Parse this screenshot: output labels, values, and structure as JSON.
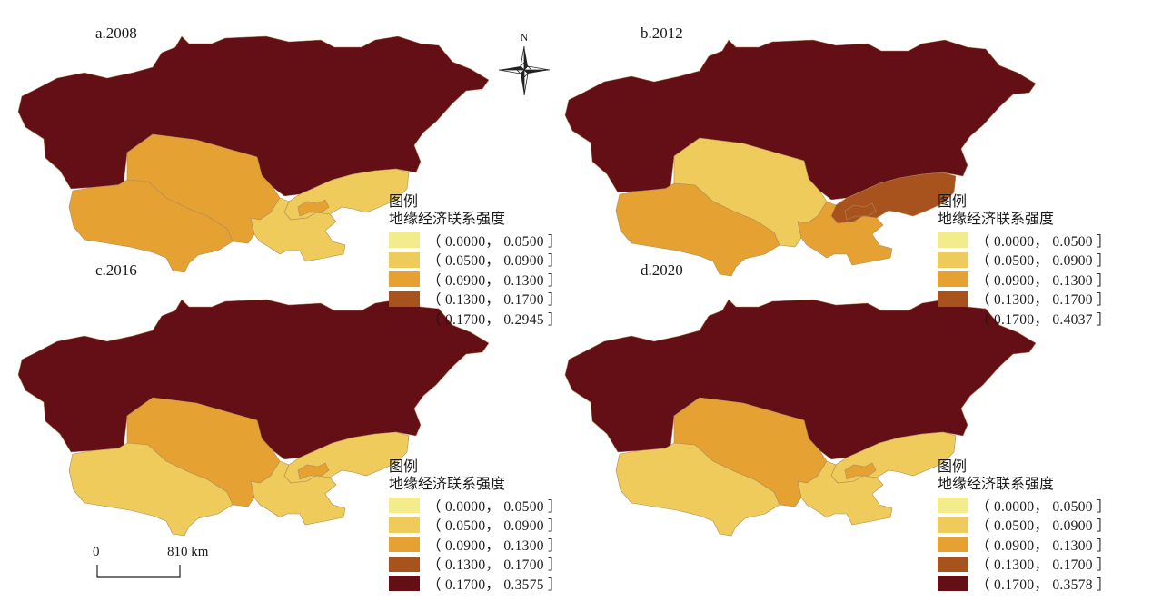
{
  "north_label": "N",
  "legend_colors": [
    "#f3ec8c",
    "#eecb5a",
    "#e5a132",
    "#a8521e",
    "#640e15"
  ],
  "panels": [
    {
      "label": "a.2008",
      "legend": {
        "title": "图例",
        "subtitle": "地缘经济联系强度",
        "ranges": [
          "（ 0.0000， 0.0500 ］",
          "（ 0.0500， 0.0900 ］",
          "（ 0.0900， 0.1300 ］",
          "（ 0.1300， 0.1700 ］",
          "（ 0.1700， 0.2945 ］"
        ]
      },
      "regions": {
        "kazakhstan": 4,
        "turkmenistan": 2,
        "uzbekistan": 2,
        "kyrgyzstan": 1,
        "tajikistan": 1,
        "fergana": 2
      }
    },
    {
      "label": "b.2012",
      "legend": {
        "title": "图例",
        "subtitle": "地缘经济联系强度",
        "ranges": [
          "（ 0.0000， 0.0500 ］",
          "（ 0.0500， 0.0900 ］",
          "（ 0.0900， 0.1300 ］",
          "（ 0.1300， 0.1700 ］",
          "（ 0.1700， 0.4037 ］"
        ]
      },
      "regions": {
        "kazakhstan": 4,
        "turkmenistan": 2,
        "uzbekistan": 1,
        "kyrgyzstan": 3,
        "tajikistan": 2,
        "fergana": 3
      }
    },
    {
      "label": "c.2016",
      "legend": {
        "title": "图例",
        "subtitle": "地缘经济联系强度",
        "ranges": [
          "（ 0.0000， 0.0500 ］",
          "（ 0.0500， 0.0900 ］",
          "（ 0.0900， 0.1300 ］",
          "（ 0.1300， 0.1700 ］",
          "（ 0.1700， 0.3575 ］"
        ]
      },
      "regions": {
        "kazakhstan": 4,
        "turkmenistan": 1,
        "uzbekistan": 2,
        "kyrgyzstan": 1,
        "tajikistan": 1,
        "fergana": 2
      }
    },
    {
      "label": "d.2020",
      "legend": {
        "title": "图例",
        "subtitle": "地缘经济联系强度",
        "ranges": [
          "（ 0.0000， 0.0500 ］",
          "（ 0.0500， 0.0900 ］",
          "（ 0.0900， 0.1300 ］",
          "（ 0.1300， 0.1700 ］",
          "（ 0.1700， 0.3578 ］"
        ]
      },
      "regions": {
        "kazakhstan": 4,
        "turkmenistan": 1,
        "uzbekistan": 2,
        "kyrgyzstan": 1,
        "tajikistan": 1,
        "fergana": 2
      }
    }
  ],
  "scale_bar": {
    "start_label": "0",
    "end_label": "810 km"
  }
}
